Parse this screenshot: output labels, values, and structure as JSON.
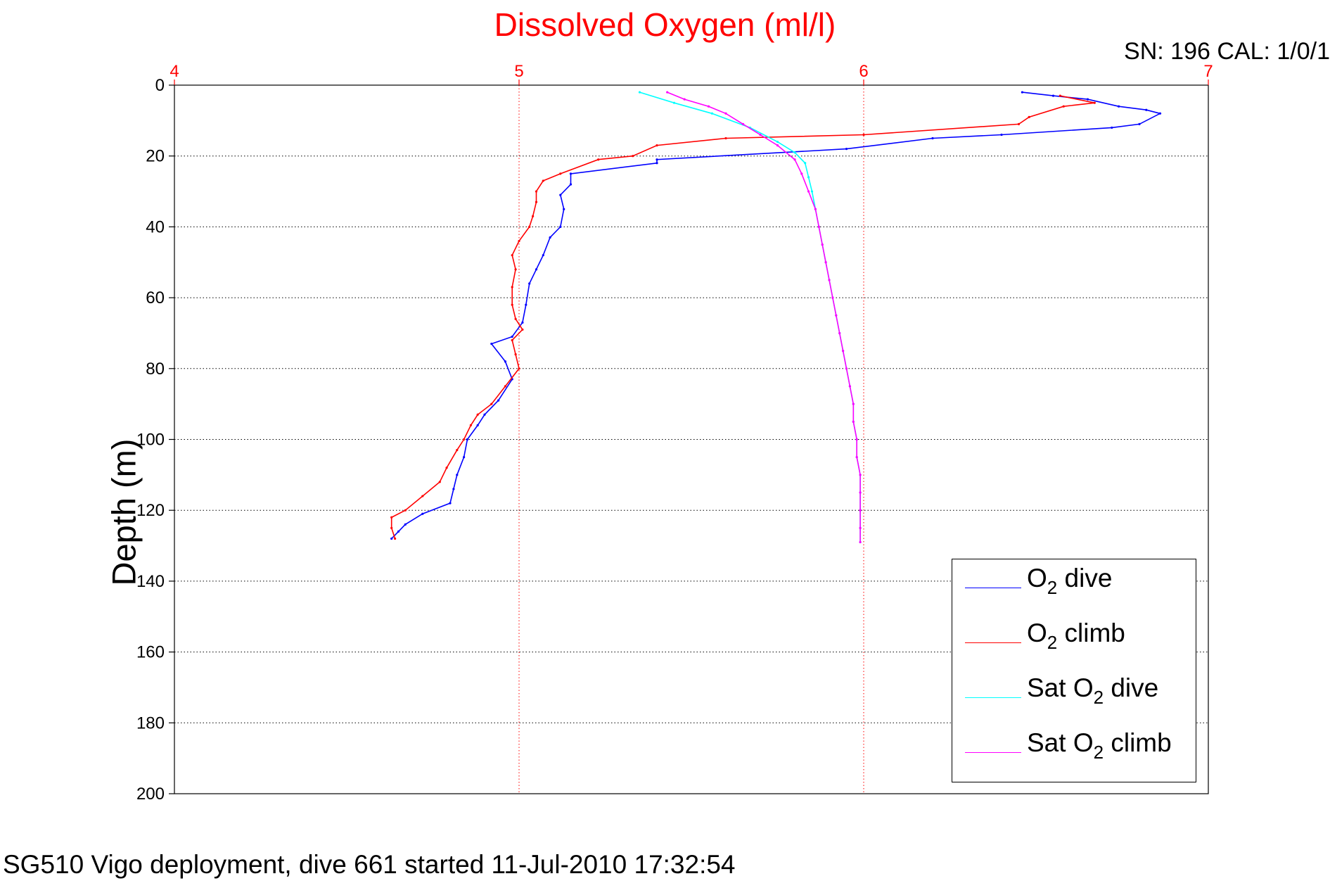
{
  "title": "Dissolved Oxygen (ml/l)",
  "serial": "SN: 196  CAL: 1/0/1",
  "footer": "SG510 Vigo deployment, dive 661 started 11-Jul-2010 17:32:54",
  "colors": {
    "title": "#ff0000",
    "x_axis": "#ff0000",
    "y_axis": "#000000",
    "grid_x": "#ff0000",
    "grid_y": "#000000"
  },
  "legend": {
    "items": [
      {
        "pre": "O",
        "sub": "2",
        "post": " dive",
        "color": "#0000ff"
      },
      {
        "pre": "O",
        "sub": "2",
        "post": " climb",
        "color": "#ff0000"
      },
      {
        "pre": "Sat O",
        "sub": "2",
        "post": " dive",
        "color": "#00ffff"
      },
      {
        "pre": "Sat O",
        "sub": "2",
        "post": " climb",
        "color": "#ff00ff"
      }
    ]
  },
  "chart_data": {
    "type": "line",
    "title": "Dissolved Oxygen (ml/l)",
    "xlabel": "",
    "ylabel": "Depth (m)",
    "xlim": [
      4,
      7
    ],
    "ylim": [
      0,
      200
    ],
    "y_reversed": true,
    "x_axis_position": "top",
    "xticks": [
      4,
      5,
      6,
      7
    ],
    "yticks": [
      0,
      20,
      40,
      60,
      80,
      100,
      120,
      140,
      160,
      180,
      200
    ],
    "grid": true,
    "legend_position": "bottom-right",
    "series": [
      {
        "name": "O2 dive",
        "color": "#0000ff",
        "points": [
          [
            6.46,
            2
          ],
          [
            6.55,
            3
          ],
          [
            6.65,
            4
          ],
          [
            6.74,
            6
          ],
          [
            6.82,
            7
          ],
          [
            6.86,
            8
          ],
          [
            6.8,
            11
          ],
          [
            6.72,
            12
          ],
          [
            6.4,
            14
          ],
          [
            6.2,
            15
          ],
          [
            5.95,
            18
          ],
          [
            5.4,
            21
          ],
          [
            5.4,
            22
          ],
          [
            5.15,
            25
          ],
          [
            5.15,
            28
          ],
          [
            5.12,
            31
          ],
          [
            5.13,
            35
          ],
          [
            5.12,
            40
          ],
          [
            5.09,
            43
          ],
          [
            5.07,
            48
          ],
          [
            5.05,
            52
          ],
          [
            5.03,
            56
          ],
          [
            5.02,
            62
          ],
          [
            5.01,
            67
          ],
          [
            4.98,
            71
          ],
          [
            4.92,
            73
          ],
          [
            4.96,
            78
          ],
          [
            4.98,
            83
          ],
          [
            4.94,
            89
          ],
          [
            4.9,
            93
          ],
          [
            4.88,
            96
          ],
          [
            4.85,
            100
          ],
          [
            4.84,
            105
          ],
          [
            4.82,
            110
          ],
          [
            4.81,
            114
          ],
          [
            4.8,
            118
          ],
          [
            4.72,
            121
          ],
          [
            4.67,
            124
          ],
          [
            4.65,
            126
          ],
          [
            4.63,
            128
          ]
        ]
      },
      {
        "name": "O2 climb",
        "color": "#ff0000",
        "points": [
          [
            6.57,
            3
          ],
          [
            6.67,
            5
          ],
          [
            6.58,
            6
          ],
          [
            6.48,
            9
          ],
          [
            6.45,
            11
          ],
          [
            6.0,
            14
          ],
          [
            5.6,
            15
          ],
          [
            5.4,
            17
          ],
          [
            5.33,
            20
          ],
          [
            5.23,
            21
          ],
          [
            5.12,
            25
          ],
          [
            5.07,
            27
          ],
          [
            5.05,
            30
          ],
          [
            5.05,
            33
          ],
          [
            5.04,
            37
          ],
          [
            5.03,
            40
          ],
          [
            5.0,
            44
          ],
          [
            4.98,
            48
          ],
          [
            4.99,
            52
          ],
          [
            4.98,
            57
          ],
          [
            4.98,
            62
          ],
          [
            4.99,
            66
          ],
          [
            5.01,
            69
          ],
          [
            4.98,
            72
          ],
          [
            4.99,
            76
          ],
          [
            5.0,
            80
          ],
          [
            4.96,
            85
          ],
          [
            4.92,
            90
          ],
          [
            4.88,
            93
          ],
          [
            4.86,
            96
          ],
          [
            4.84,
            100
          ],
          [
            4.82,
            103
          ],
          [
            4.79,
            108
          ],
          [
            4.77,
            112
          ],
          [
            4.72,
            116
          ],
          [
            4.67,
            120
          ],
          [
            4.63,
            122
          ],
          [
            4.63,
            125
          ],
          [
            4.64,
            128
          ]
        ]
      },
      {
        "name": "Sat O2 dive",
        "color": "#00ffff",
        "points": [
          [
            5.35,
            2
          ],
          [
            5.45,
            5
          ],
          [
            5.56,
            8
          ],
          [
            5.67,
            12
          ],
          [
            5.75,
            16
          ],
          [
            5.8,
            19
          ],
          [
            5.83,
            22
          ],
          [
            5.84,
            26
          ],
          [
            5.85,
            30
          ],
          [
            5.86,
            35
          ],
          [
            5.87,
            40
          ],
          [
            5.88,
            45
          ],
          [
            5.89,
            50
          ],
          [
            5.9,
            55
          ],
          [
            5.91,
            60
          ],
          [
            5.92,
            65
          ],
          [
            5.93,
            70
          ],
          [
            5.94,
            75
          ],
          [
            5.95,
            80
          ],
          [
            5.96,
            85
          ],
          [
            5.97,
            90
          ],
          [
            5.97,
            95
          ],
          [
            5.98,
            100
          ],
          [
            5.98,
            105
          ],
          [
            5.99,
            110
          ],
          [
            5.99,
            115
          ],
          [
            5.99,
            120
          ],
          [
            5.99,
            125
          ],
          [
            5.99,
            129
          ]
        ]
      },
      {
        "name": "Sat O2 climb",
        "color": "#ff00ff",
        "points": [
          [
            5.43,
            2
          ],
          [
            5.48,
            4
          ],
          [
            5.55,
            6
          ],
          [
            5.6,
            8
          ],
          [
            5.65,
            11
          ],
          [
            5.7,
            14
          ],
          [
            5.75,
            17
          ],
          [
            5.8,
            21
          ],
          [
            5.82,
            25
          ],
          [
            5.84,
            30
          ],
          [
            5.86,
            35
          ],
          [
            5.87,
            40
          ],
          [
            5.88,
            45
          ],
          [
            5.89,
            50
          ],
          [
            5.9,
            55
          ],
          [
            5.91,
            60
          ],
          [
            5.92,
            65
          ],
          [
            5.93,
            70
          ],
          [
            5.94,
            75
          ],
          [
            5.95,
            80
          ],
          [
            5.96,
            85
          ],
          [
            5.97,
            90
          ],
          [
            5.97,
            95
          ],
          [
            5.98,
            100
          ],
          [
            5.98,
            105
          ],
          [
            5.99,
            110
          ],
          [
            5.99,
            115
          ],
          [
            5.99,
            120
          ],
          [
            5.99,
            125
          ],
          [
            5.99,
            129
          ]
        ]
      }
    ]
  }
}
